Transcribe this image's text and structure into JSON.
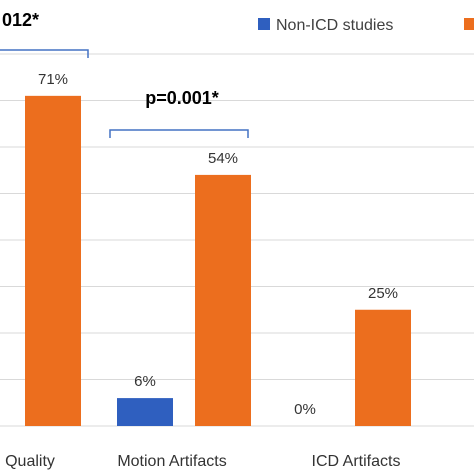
{
  "colors": {
    "non_icd": "#2f5fbf",
    "icd": "#ec6e1e",
    "bracket": "#4472c4"
  },
  "chart_data": {
    "type": "bar",
    "title": "",
    "xlabel": "",
    "ylabel": "",
    "ylim": [
      0,
      80
    ],
    "grid": true,
    "legend_position": "top-right",
    "categories": [
      "Quality",
      "Motion Artifacts",
      "ICD Artifacts"
    ],
    "series": [
      {
        "name": "Non-ICD studies",
        "values": [
          null,
          6,
          0
        ],
        "labels": [
          "",
          "6%",
          "0%"
        ]
      },
      {
        "name": "",
        "values": [
          71,
          54,
          25
        ],
        "labels": [
          "71%",
          "54%",
          "25%"
        ]
      }
    ],
    "annotations": [
      {
        "text": "012*",
        "category": 0
      },
      {
        "text": "p=0.001*",
        "category": 1
      }
    ]
  }
}
